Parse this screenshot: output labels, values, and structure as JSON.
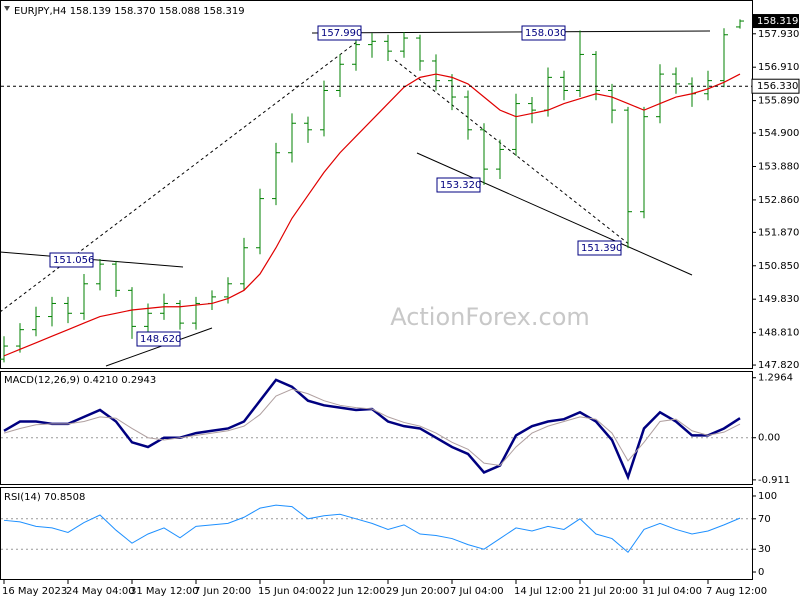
{
  "chart_data": [
    {
      "type": "ohlc",
      "title": "EURJPY,H4  158.139 158.370 158.088 158.319",
      "watermark": "ActionForex.com",
      "color": "#008000",
      "categories": [
        "16 May 2023",
        null,
        null,
        null,
        "24 May 04:00",
        null,
        null,
        null,
        "31 May 12:00",
        null,
        null,
        null,
        "7 Jun 20:00",
        null,
        null,
        null,
        "15 Jun 04:00",
        null,
        null,
        null,
        "22 Jun 12:00",
        null,
        null,
        null,
        "29 Jun 20:00",
        null,
        null,
        null,
        "7 Jul 04:00",
        null,
        null,
        null,
        "14 Jul 12:00",
        null,
        null,
        null,
        "21 Jul 20:00",
        null,
        null,
        null,
        "31 Jul 04:00",
        null,
        null,
        null,
        "7 Aug 12:00",
        null,
        null
      ],
      "open": [
        148.0,
        148.4,
        148.9,
        149.3,
        149.7,
        149.4,
        150.3,
        150.9,
        150.1,
        149.0,
        149.4,
        149.7,
        149.1,
        149.7,
        149.9,
        150.3,
        151.4,
        152.9,
        154.3,
        155.2,
        155.0,
        156.2,
        157.0,
        157.6,
        157.7,
        157.4,
        157.8,
        157.1,
        156.5,
        156.0,
        155.0,
        153.8,
        154.4,
        155.8,
        155.6,
        156.6,
        156.2,
        157.3,
        156.2,
        155.6,
        152.5,
        155.4,
        156.7,
        156.4,
        156.1,
        156.5,
        158.139
      ],
      "high": [
        148.7,
        149.1,
        149.6,
        149.9,
        149.9,
        150.6,
        151.056,
        151.0,
        150.2,
        149.7,
        150.0,
        149.8,
        149.9,
        150.1,
        150.5,
        151.7,
        153.2,
        154.6,
        155.5,
        155.4,
        156.5,
        157.3,
        157.99,
        157.95,
        157.9,
        157.98,
        157.9,
        157.3,
        156.7,
        156.2,
        155.2,
        154.7,
        156.1,
        156.0,
        156.9,
        156.8,
        158.03,
        157.4,
        156.4,
        155.7,
        155.7,
        157.0,
        156.9,
        156.6,
        156.8,
        158.1,
        158.37
      ],
      "low": [
        147.9,
        148.2,
        148.7,
        149.0,
        149.1,
        149.2,
        150.1,
        149.9,
        148.62,
        148.8,
        149.2,
        148.9,
        148.9,
        149.5,
        149.7,
        150.1,
        151.2,
        152.7,
        154.0,
        154.6,
        154.8,
        156.0,
        156.8,
        157.2,
        157.1,
        157.2,
        156.8,
        156.2,
        155.6,
        154.7,
        153.32,
        153.5,
        154.2,
        155.2,
        155.4,
        155.9,
        156.0,
        155.9,
        155.2,
        151.39,
        152.3,
        155.2,
        156.1,
        155.7,
        155.9,
        156.3,
        158.088
      ],
      "close": [
        148.4,
        148.9,
        149.3,
        149.7,
        149.4,
        150.3,
        150.9,
        150.1,
        149.0,
        149.4,
        149.7,
        149.1,
        149.7,
        149.9,
        150.3,
        151.4,
        152.9,
        154.3,
        155.2,
        155.0,
        156.2,
        157.0,
        157.6,
        157.7,
        157.4,
        157.8,
        157.1,
        156.5,
        156.0,
        155.0,
        153.8,
        154.4,
        155.8,
        155.6,
        156.6,
        156.2,
        157.3,
        156.2,
        155.6,
        152.5,
        155.4,
        156.7,
        156.4,
        156.1,
        156.5,
        157.9,
        158.319
      ],
      "ma": {
        "color": "#e00000",
        "values": [
          148.1,
          148.3,
          148.5,
          148.7,
          148.9,
          149.1,
          149.3,
          149.4,
          149.5,
          149.55,
          149.6,
          149.6,
          149.65,
          149.7,
          149.85,
          150.1,
          150.6,
          151.4,
          152.3,
          153.0,
          153.7,
          154.3,
          154.8,
          155.3,
          155.8,
          156.3,
          156.6,
          156.7,
          156.6,
          156.4,
          156.0,
          155.6,
          155.4,
          155.5,
          155.6,
          155.8,
          155.95,
          156.1,
          156.0,
          155.8,
          155.6,
          155.8,
          156.0,
          156.1,
          156.25,
          156.45,
          156.7
        ]
      },
      "ylim": [
        147.73,
        158.9
      ],
      "yticks": [
        {
          "value": 157.93,
          "label": "157.930"
        },
        {
          "value": 156.91,
          "label": "156.910"
        },
        {
          "value": 155.89,
          "label": "155.890"
        },
        {
          "value": 154.9,
          "label": "154.900"
        },
        {
          "value": 153.88,
          "label": "153.880"
        },
        {
          "value": 152.86,
          "label": "152.860"
        },
        {
          "value": 151.87,
          "label": "151.870"
        },
        {
          "value": 150.85,
          "label": "150.850"
        },
        {
          "value": 149.83,
          "label": "149.830"
        },
        {
          "value": 148.81,
          "label": "148.810"
        },
        {
          "value": 147.82,
          "label": "147.820"
        }
      ],
      "hline": {
        "value": 156.33,
        "label": "156.330"
      },
      "annotations": [
        {
          "value": 157.99,
          "label": "157.990"
        },
        {
          "value": 158.03,
          "label": "158.030"
        },
        {
          "value": 151.056,
          "label": "151.056"
        },
        {
          "value": 153.32,
          "label": "153.320"
        },
        {
          "value": 151.39,
          "label": "151.390"
        },
        {
          "value": 148.62,
          "label": "148.620"
        }
      ]
    },
    {
      "type": "line",
      "title": "MACD(12,26,9) 0.4210 0.2943",
      "series": [
        {
          "color": "#000080",
          "values": [
            0.15,
            0.35,
            0.35,
            0.3,
            0.3,
            0.45,
            0.6,
            0.35,
            -0.1,
            -0.2,
            0.0,
            0.0,
            0.1,
            0.15,
            0.2,
            0.35,
            0.8,
            1.25,
            1.1,
            0.8,
            0.7,
            0.65,
            0.6,
            0.62,
            0.35,
            0.25,
            0.2,
            0.0,
            -0.2,
            -0.35,
            -0.75,
            -0.6,
            0.05,
            0.25,
            0.35,
            0.4,
            0.55,
            0.35,
            -0.05,
            -0.85,
            0.2,
            0.55,
            0.35,
            0.05,
            0.05,
            0.2,
            0.421
          ]
        },
        {
          "color": "#b0a0a0",
          "values": [
            0.1,
            0.2,
            0.28,
            0.3,
            0.3,
            0.35,
            0.45,
            0.42,
            0.2,
            0.0,
            -0.05,
            0.0,
            0.05,
            0.1,
            0.15,
            0.25,
            0.5,
            0.9,
            1.05,
            0.95,
            0.8,
            0.7,
            0.65,
            0.62,
            0.45,
            0.33,
            0.25,
            0.1,
            -0.1,
            -0.25,
            -0.55,
            -0.6,
            -0.2,
            0.1,
            0.25,
            0.35,
            0.45,
            0.4,
            0.1,
            -0.5,
            -0.1,
            0.35,
            0.4,
            0.15,
            0.05,
            0.12,
            0.2943
          ]
        }
      ],
      "ylim": [
        -1.0,
        1.42
      ],
      "yticks": [
        1.2964,
        {
          "value": 0,
          "label": "0.00"
        },
        -0.911
      ],
      "levels": [
        0
      ]
    },
    {
      "type": "line",
      "title": "RSI(14) 70.8508",
      "series": [
        {
          "color": "#1e90ff",
          "values": [
            68,
            66,
            60,
            58,
            52,
            65,
            75,
            55,
            38,
            50,
            58,
            45,
            60,
            62,
            64,
            72,
            84,
            88,
            86,
            70,
            74,
            76,
            70,
            64,
            56,
            62,
            50,
            48,
            44,
            36,
            30,
            44,
            58,
            54,
            60,
            56,
            70,
            50,
            44,
            26,
            56,
            64,
            56,
            50,
            54,
            62,
            70.8508
          ]
        }
      ],
      "ylim": [
        -10.5,
        110.5
      ],
      "yticks": [
        100,
        70,
        30,
        0
      ],
      "levels": [
        70,
        30
      ]
    }
  ]
}
